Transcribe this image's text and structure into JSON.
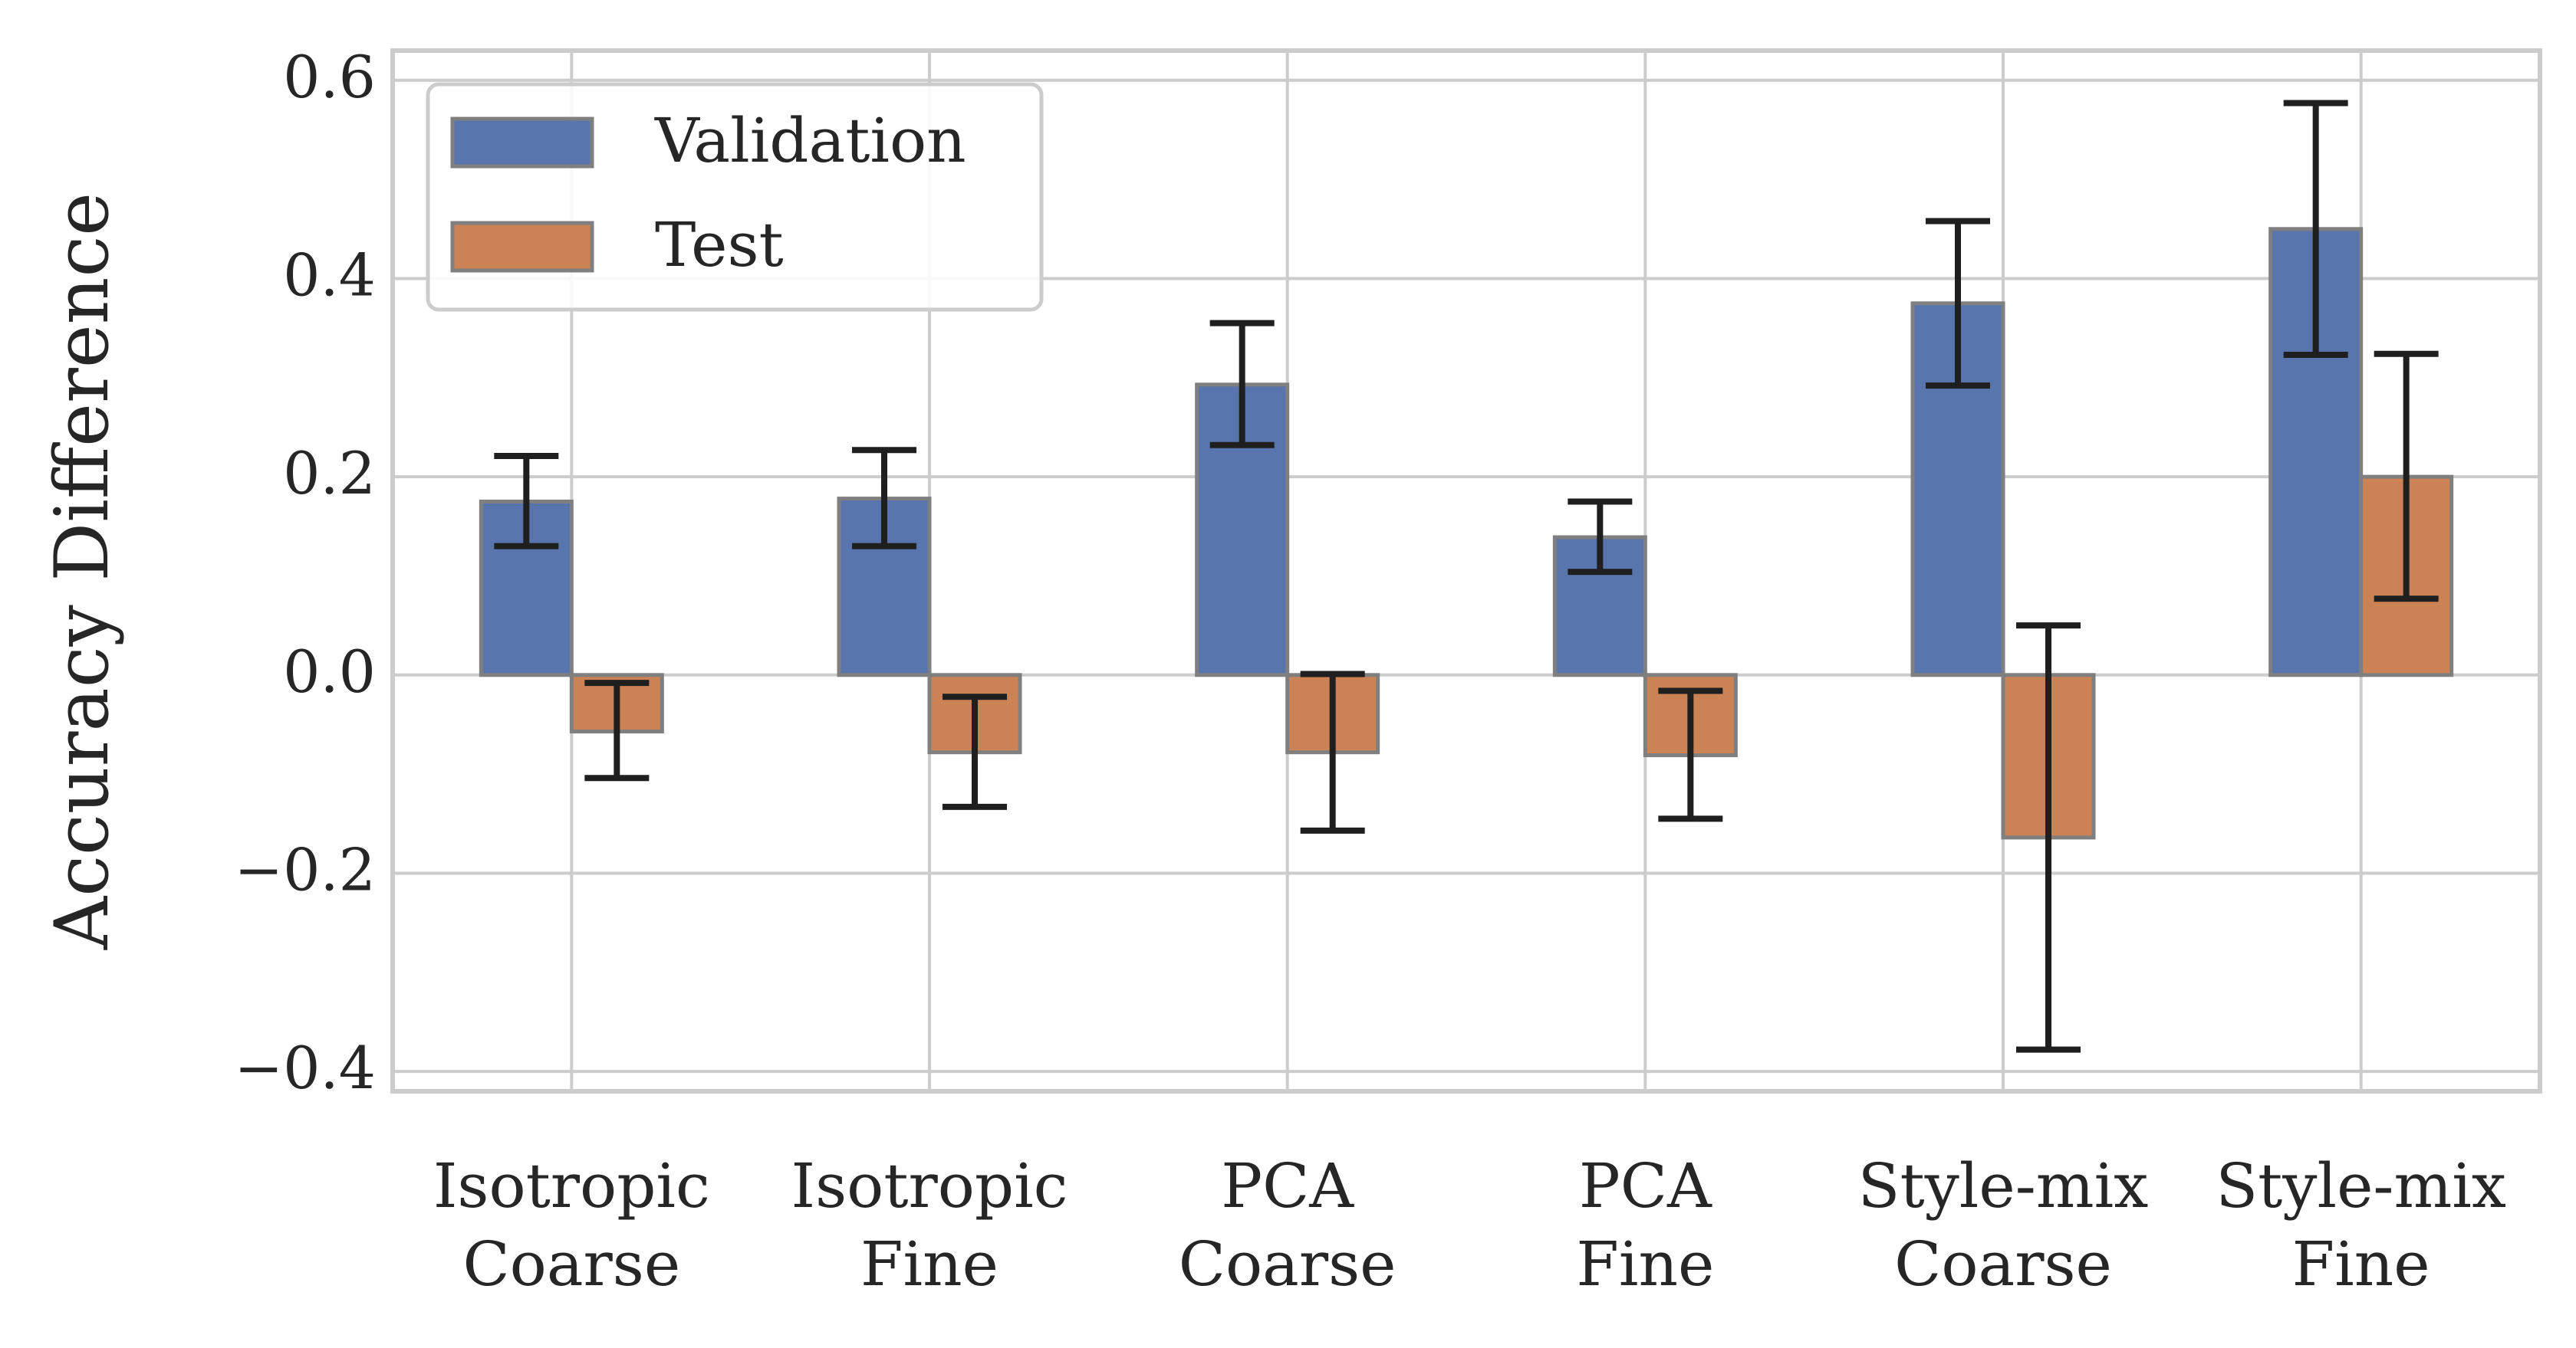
{
  "chart_data": {
    "type": "bar",
    "title": "",
    "xlabel": "",
    "ylabel": "Accuracy Difference",
    "ylim": [
      -0.42,
      0.63
    ],
    "yticks": [
      -0.4,
      -0.2,
      0.0,
      0.2,
      0.4,
      0.6
    ],
    "ytick_labels": [
      "−0.4",
      "−0.2",
      "0.0",
      "0.2",
      "0.4",
      "0.6"
    ],
    "grid": true,
    "legend_position": "top-left",
    "categories": [
      [
        "Isotropic",
        "Coarse"
      ],
      [
        "Isotropic",
        "Fine"
      ],
      [
        "PCA",
        "Coarse"
      ],
      [
        "PCA",
        "Fine"
      ],
      [
        "Style-mix",
        "Coarse"
      ],
      [
        "Style-mix",
        "Fine"
      ]
    ],
    "series": [
      {
        "name": "Validation",
        "color": "#5975ae",
        "values": [
          0.175,
          0.178,
          0.293,
          0.139,
          0.375,
          0.45
        ],
        "error_low": [
          0.13,
          0.13,
          0.232,
          0.104,
          0.292,
          0.323
        ],
        "error_high": [
          0.221,
          0.227,
          0.355,
          0.175,
          0.458,
          0.577
        ]
      },
      {
        "name": "Test",
        "color": "#cb8355",
        "values": [
          -0.057,
          -0.078,
          -0.078,
          -0.081,
          -0.164,
          0.2
        ],
        "error_low": [
          -0.104,
          -0.133,
          -0.157,
          -0.145,
          -0.378,
          0.077
        ],
        "error_high": [
          -0.008,
          -0.022,
          0.001,
          -0.016,
          0.05,
          0.324
        ]
      }
    ]
  }
}
